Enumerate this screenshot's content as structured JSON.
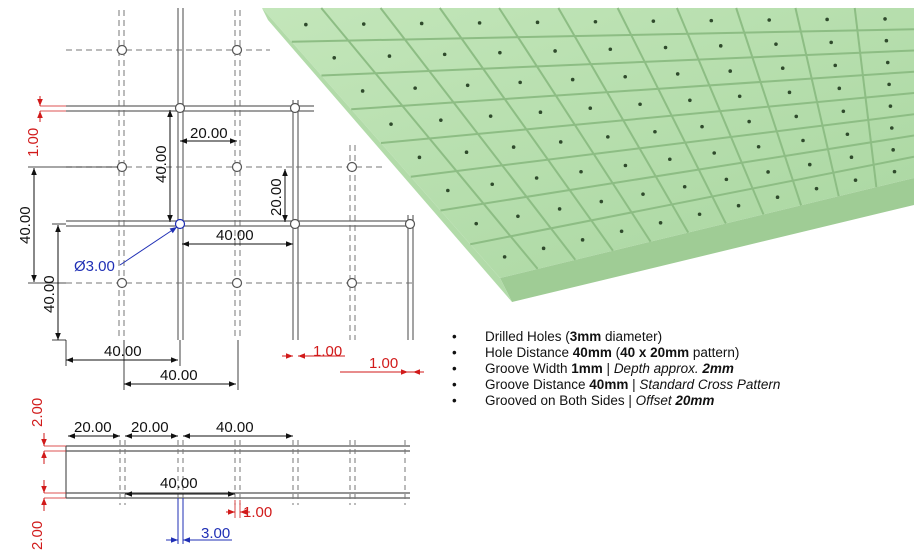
{
  "colors": {
    "board_top": "#b9e0b0",
    "board_side": "#a7cf9e",
    "groove": "#8fbf86",
    "red": "#d11a1a",
    "blue": "#1f2fb5",
    "line": "#777777"
  },
  "plan_dims": {
    "d20_top": "20.00",
    "d40_vert_inner": "40.00",
    "d20_vert_right": "20.00",
    "d40_horiz_mid": "40.00",
    "d40_left_outer": "40.00",
    "d40_left_inner": "40.00",
    "d40_bottom_a": "40.00",
    "d40_bottom_b": "40.00",
    "groove_red_left": "1.00",
    "groove_red_a": "1.00",
    "groove_red_b": "1.00",
    "hole_dia": "Ø3.00"
  },
  "section_dims": {
    "d2_top": "2.00",
    "d20_a": "20.00",
    "d20_b": "20.00",
    "d40_top": "40.00",
    "d40_mid": "40.00",
    "d1_red": "1.00",
    "d3_blue": "3.00",
    "d2_bottom": "2.00"
  },
  "features": [
    {
      "parts": [
        {
          "t": "Drilled Holes (",
          "s": ""
        },
        {
          "t": "3mm",
          "s": "b"
        },
        {
          "t": " diameter)",
          "s": ""
        }
      ]
    },
    {
      "parts": [
        {
          "t": "Hole Distance ",
          "s": ""
        },
        {
          "t": "40mm",
          "s": "b"
        },
        {
          "t": " (",
          "s": ""
        },
        {
          "t": "40 x 20mm",
          "s": "b"
        },
        {
          "t": " pattern)",
          "s": ""
        }
      ]
    },
    {
      "parts": [
        {
          "t": "Groove Width ",
          "s": ""
        },
        {
          "t": "1mm",
          "s": "b"
        },
        {
          "t": " | ",
          "s": ""
        },
        {
          "t": "Depth approx. ",
          "s": "i"
        },
        {
          "t": "2mm",
          "s": "bi"
        }
      ]
    },
    {
      "parts": [
        {
          "t": "Groove Distance ",
          "s": ""
        },
        {
          "t": "40mm",
          "s": "b"
        },
        {
          "t": " | ",
          "s": ""
        },
        {
          "t": "Standard Cross Pattern",
          "s": "i"
        }
      ]
    },
    {
      "parts": [
        {
          "t": "Grooved on Both Sides | ",
          "s": ""
        },
        {
          "t": "Offset ",
          "s": "i"
        },
        {
          "t": "20mm",
          "s": "bi"
        }
      ]
    }
  ]
}
